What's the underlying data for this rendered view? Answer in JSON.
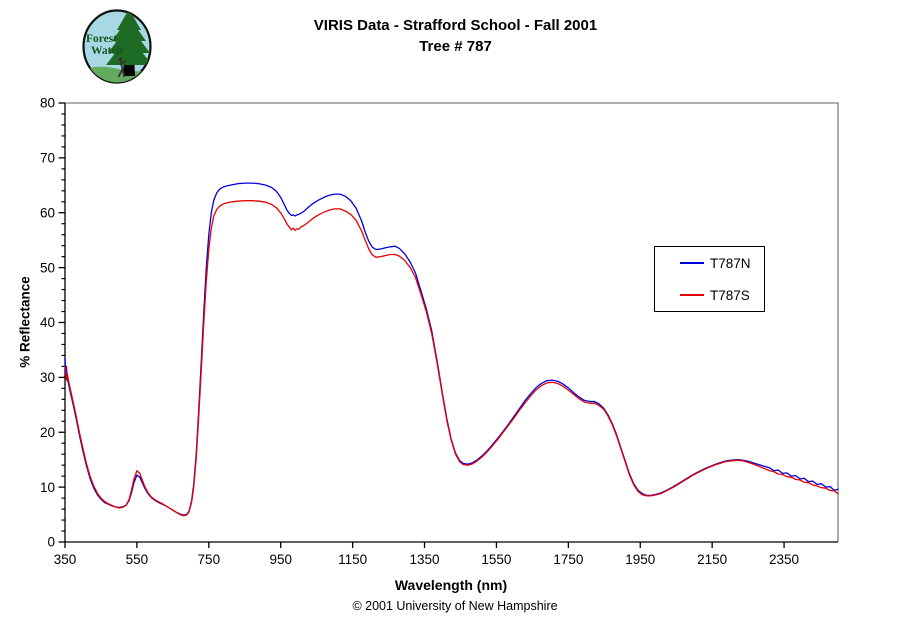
{
  "header": {
    "title_line1": "VIRIS Data - Strafford School - Fall 2001",
    "title_line2": "Tree # 787"
  },
  "logo": {
    "label_line1": "Forest",
    "label_line2": "Watch",
    "sky_color": "#a8d8e4",
    "tree_color": "#1d6b24",
    "text_color": "#14571d"
  },
  "footer": {
    "copyright": "© 2001 University of New Hampshire"
  },
  "chart_data": {
    "type": "line",
    "title": "VIRIS Data - Strafford School - Fall 2001, Tree # 787",
    "xlabel": "Wavelength (nm)",
    "ylabel": "% Reflectance",
    "xlim": [
      350,
      2500
    ],
    "ylim": [
      0,
      80
    ],
    "x_ticks": [
      350,
      550,
      750,
      950,
      1150,
      1350,
      1550,
      1750,
      1950,
      2150,
      2350
    ],
    "y_ticks": [
      0,
      10,
      20,
      30,
      40,
      50,
      60,
      70,
      80
    ],
    "y_minor_step": 2,
    "grid": false,
    "legend_position": "inside-right",
    "frame_color": "#808080",
    "axis_color": "#000000",
    "x": [
      350,
      352,
      354,
      357,
      360,
      365,
      370,
      380,
      390,
      400,
      410,
      420,
      430,
      440,
      450,
      460,
      470,
      480,
      490,
      500,
      510,
      520,
      528,
      535,
      542,
      550,
      558,
      565,
      572,
      580,
      590,
      600,
      610,
      620,
      630,
      640,
      650,
      660,
      670,
      680,
      688,
      695,
      702,
      708,
      715,
      722,
      729,
      736,
      743,
      750,
      757,
      764,
      772,
      780,
      790,
      800,
      815,
      830,
      850,
      870,
      890,
      910,
      925,
      938,
      950,
      960,
      968,
      975,
      980,
      985,
      990,
      995,
      1000,
      1008,
      1015,
      1025,
      1040,
      1055,
      1070,
      1085,
      1100,
      1115,
      1130,
      1145,
      1160,
      1175,
      1185,
      1195,
      1205,
      1215,
      1228,
      1240,
      1255,
      1268,
      1280,
      1295,
      1310,
      1325,
      1340,
      1355,
      1370,
      1385,
      1400,
      1412,
      1424,
      1436,
      1448,
      1458,
      1470,
      1482,
      1495,
      1510,
      1525,
      1540,
      1555,
      1570,
      1585,
      1600,
      1615,
      1630,
      1645,
      1660,
      1675,
      1690,
      1705,
      1720,
      1735,
      1750,
      1765,
      1780,
      1795,
      1810,
      1822,
      1835,
      1848,
      1860,
      1872,
      1884,
      1896,
      1908,
      1920,
      1932,
      1944,
      1956,
      1968,
      1980,
      1995,
      2010,
      2025,
      2040,
      2055,
      2070,
      2085,
      2100,
      2115,
      2130,
      2145,
      2160,
      2175,
      2190,
      2205,
      2220,
      2235,
      2250,
      2265,
      2280,
      2295,
      2310,
      2322,
      2334,
      2346,
      2358,
      2370,
      2382,
      2394,
      2406,
      2418,
      2430,
      2442,
      2454,
      2466,
      2478,
      2490,
      2500
    ],
    "series": [
      {
        "name": "T787N",
        "color": "#0000dd",
        "values": [
          33.5,
          30.0,
          32.0,
          29.5,
          28.8,
          27.2,
          25.8,
          22.8,
          19.5,
          16.5,
          13.8,
          11.5,
          9.8,
          8.6,
          7.8,
          7.2,
          6.9,
          6.6,
          6.4,
          6.3,
          6.4,
          6.7,
          7.5,
          9.0,
          10.8,
          12.2,
          11.8,
          10.8,
          9.8,
          8.9,
          8.1,
          7.6,
          7.2,
          6.9,
          6.6,
          6.2,
          5.8,
          5.4,
          5.1,
          4.9,
          5.0,
          5.6,
          7.5,
          10.5,
          16.0,
          24.0,
          33.0,
          42.0,
          50.0,
          56.0,
          60.0,
          62.3,
          63.6,
          64.3,
          64.7,
          64.9,
          65.1,
          65.3,
          65.4,
          65.4,
          65.3,
          65.0,
          64.6,
          63.9,
          62.8,
          61.5,
          60.4,
          59.8,
          59.5,
          59.6,
          59.4,
          59.6,
          59.7,
          60.0,
          60.3,
          60.9,
          61.7,
          62.3,
          62.8,
          63.2,
          63.4,
          63.4,
          63.0,
          62.2,
          60.8,
          58.5,
          56.5,
          54.8,
          53.7,
          53.3,
          53.4,
          53.6,
          53.8,
          53.9,
          53.5,
          52.5,
          51.0,
          49.0,
          45.8,
          42.5,
          38.5,
          33.0,
          27.0,
          22.5,
          18.8,
          16.2,
          14.8,
          14.3,
          14.2,
          14.4,
          14.9,
          15.7,
          16.7,
          17.8,
          19.0,
          20.3,
          21.6,
          23.0,
          24.4,
          25.8,
          27.0,
          28.1,
          28.9,
          29.4,
          29.5,
          29.3,
          28.8,
          28.1,
          27.2,
          26.4,
          25.8,
          25.6,
          25.6,
          25.2,
          24.4,
          23.2,
          21.6,
          19.6,
          17.2,
          14.8,
          12.4,
          10.6,
          9.4,
          8.8,
          8.5,
          8.5,
          8.7,
          9.0,
          9.5,
          10.0,
          10.6,
          11.2,
          11.8,
          12.4,
          12.9,
          13.4,
          13.8,
          14.2,
          14.5,
          14.8,
          14.9,
          15.0,
          14.9,
          14.7,
          14.4,
          14.1,
          13.8,
          13.5,
          13.0,
          13.1,
          12.5,
          12.6,
          12.0,
          12.1,
          11.5,
          11.6,
          11.0,
          11.1,
          10.5,
          10.6,
          10.0,
          10.1,
          9.4,
          9.6
        ]
      },
      {
        "name": "T787S",
        "color": "#e60000",
        "values": [
          32.0,
          31.5,
          29.5,
          30.5,
          29.3,
          27.8,
          26.3,
          23.3,
          20.0,
          17.0,
          14.2,
          11.9,
          10.2,
          8.9,
          8.0,
          7.4,
          7.0,
          6.7,
          6.4,
          6.2,
          6.3,
          6.7,
          7.7,
          9.5,
          11.5,
          13.0,
          12.5,
          11.3,
          10.1,
          9.1,
          8.2,
          7.7,
          7.3,
          7.0,
          6.6,
          6.2,
          5.8,
          5.4,
          5.0,
          4.8,
          4.9,
          5.5,
          7.2,
          10.0,
          15.2,
          22.8,
          31.4,
          40.0,
          47.6,
          53.3,
          57.2,
          59.4,
          60.6,
          61.2,
          61.6,
          61.8,
          62.0,
          62.1,
          62.2,
          62.2,
          62.1,
          61.9,
          61.5,
          60.9,
          60.0,
          58.9,
          57.9,
          57.3,
          56.9,
          57.2,
          56.8,
          57.1,
          57.0,
          57.5,
          57.7,
          58.2,
          59.0,
          59.6,
          60.1,
          60.5,
          60.7,
          60.7,
          60.3,
          59.7,
          58.6,
          56.7,
          55.0,
          53.4,
          52.3,
          51.9,
          52.0,
          52.2,
          52.4,
          52.4,
          52.1,
          51.3,
          50.0,
          48.2,
          45.2,
          42.0,
          38.0,
          32.6,
          26.7,
          22.2,
          18.6,
          16.0,
          14.6,
          14.1,
          14.0,
          14.2,
          14.7,
          15.5,
          16.5,
          17.6,
          18.8,
          20.1,
          21.4,
          22.7,
          24.1,
          25.4,
          26.6,
          27.7,
          28.5,
          29.0,
          29.1,
          28.9,
          28.4,
          27.7,
          26.9,
          26.1,
          25.5,
          25.3,
          25.3,
          24.9,
          24.2,
          23.0,
          21.4,
          19.4,
          17.0,
          14.6,
          12.2,
          10.4,
          9.2,
          8.6,
          8.4,
          8.4,
          8.6,
          8.9,
          9.4,
          9.9,
          10.5,
          11.1,
          11.7,
          12.3,
          12.8,
          13.3,
          13.7,
          14.1,
          14.4,
          14.7,
          14.8,
          14.9,
          14.8,
          14.5,
          14.2,
          13.8,
          13.4,
          13.0,
          12.8,
          12.4,
          12.3,
          11.9,
          11.8,
          11.4,
          11.3,
          10.9,
          10.8,
          10.4,
          10.2,
          9.9,
          9.8,
          9.4,
          9.3,
          8.8
        ]
      }
    ]
  }
}
